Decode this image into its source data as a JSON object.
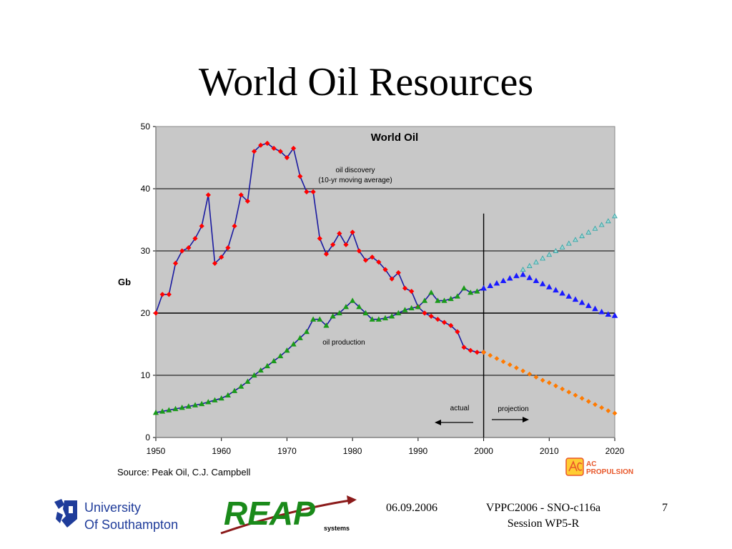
{
  "slide": {
    "title": "World Oil Resources",
    "footer_date": "06.09.2006",
    "footer_session_line1": "VPPC2006 - SNO-c116a",
    "footer_session_line2": "Session WP5-R",
    "page_number": "7"
  },
  "logos": {
    "university_line1": "University",
    "university_line2": "Of Southampton",
    "reap_word": "REAP",
    "reap_sub": "systems",
    "ac_line1": "AC",
    "ac_line2": "PROPULSION"
  },
  "colors": {
    "discovery_marker": "#ff0000",
    "discovery_line": "#1a1aa0",
    "production_marker": "#1a9a1a",
    "production_projection": "#1a1aff",
    "discovery_projection": "#ff7a00",
    "alt_projection": "#2aa0a0",
    "plot_bg": "#c8c8c8",
    "univ_blue": "#1f3c9a",
    "reap_green": "#1a8a1a",
    "reap_arrow": "#8b1a1a"
  },
  "chart_data": {
    "type": "line",
    "title": "World Oil",
    "ylabel": "Gb",
    "xlabel": "",
    "xlim": [
      1950,
      2020
    ],
    "ylim": [
      0,
      50
    ],
    "x_ticks": [
      1950,
      1960,
      1970,
      1980,
      1990,
      2000,
      2010,
      2020
    ],
    "y_ticks": [
      0,
      10,
      20,
      30,
      40,
      50
    ],
    "grid": "horizontal",
    "annotations": {
      "discovery": "oil discovery",
      "discovery_sub": "(10-yr moving average)",
      "production": "oil production",
      "actual": "actual",
      "projection": "projection"
    },
    "source": "Source: Peak Oil, C.J. Campbell",
    "divider_year": 2000,
    "series": [
      {
        "key": "discovery",
        "x": [
          1950,
          1951,
          1952,
          1953,
          1954,
          1955,
          1956,
          1957,
          1958,
          1959,
          1960,
          1961,
          1962,
          1963,
          1964,
          1965,
          1966,
          1967,
          1968,
          1969,
          1970,
          1971,
          1972,
          1973,
          1974,
          1975,
          1976,
          1977,
          1978,
          1979,
          1980,
          1981,
          1982,
          1983,
          1984,
          1985,
          1986,
          1987,
          1988,
          1989,
          1990,
          1991,
          1992,
          1993,
          1994,
          1995,
          1996,
          1997,
          1998,
          1999,
          2000
        ],
        "y": [
          20,
          23,
          23,
          28,
          30,
          30.5,
          32,
          34,
          39,
          28,
          29,
          30.5,
          34,
          39,
          38,
          46,
          47,
          47.3,
          46.5,
          46,
          45,
          46.5,
          42,
          39.5,
          39.5,
          32,
          29.5,
          31,
          32.8,
          31,
          33,
          30,
          28.5,
          29,
          28.2,
          27,
          25.5,
          26.5,
          24,
          23.5,
          21,
          20,
          19.5,
          19,
          18.5,
          18,
          17,
          14.5,
          14,
          13.7,
          13.7
        ]
      },
      {
        "key": "discovery_projection",
        "x": [
          2000,
          2001,
          2002,
          2003,
          2004,
          2005,
          2006,
          2007,
          2008,
          2009,
          2010,
          2011,
          2012,
          2013,
          2014,
          2015,
          2016,
          2017,
          2018,
          2019,
          2020
        ],
        "y": [
          13.7,
          13.2,
          12.7,
          12.2,
          11.7,
          11.2,
          10.7,
          10.2,
          9.7,
          9.2,
          8.8,
          8.3,
          7.8,
          7.3,
          6.8,
          6.3,
          5.8,
          5.3,
          4.8,
          4.3,
          3.9
        ]
      },
      {
        "key": "production",
        "x": [
          1950,
          1951,
          1952,
          1953,
          1954,
          1955,
          1956,
          1957,
          1958,
          1959,
          1960,
          1961,
          1962,
          1963,
          1964,
          1965,
          1966,
          1967,
          1968,
          1969,
          1970,
          1971,
          1972,
          1973,
          1974,
          1975,
          1976,
          1977,
          1978,
          1979,
          1980,
          1981,
          1982,
          1983,
          1984,
          1985,
          1986,
          1987,
          1988,
          1989,
          1990,
          1991,
          1992,
          1993,
          1994,
          1995,
          1996,
          1997,
          1998,
          1999,
          2000
        ],
        "y": [
          4,
          4.2,
          4.4,
          4.6,
          4.8,
          5,
          5.2,
          5.4,
          5.7,
          6,
          6.3,
          6.8,
          7.5,
          8.2,
          9,
          10,
          10.8,
          11.5,
          12.3,
          13.1,
          14,
          15,
          16,
          17,
          19,
          19,
          18,
          19.5,
          20,
          21,
          22,
          21,
          20,
          19,
          19,
          19.2,
          19.5,
          20,
          20.5,
          20.8,
          21,
          22,
          23.3,
          22,
          22,
          22.3,
          22.7,
          24,
          23.3,
          23.5,
          24
        ]
      },
      {
        "key": "production_projection",
        "x": [
          2000,
          2001,
          2002,
          2003,
          2004,
          2005,
          2006,
          2007,
          2008,
          2009,
          2010,
          2011,
          2012,
          2013,
          2014,
          2015,
          2016,
          2017,
          2018,
          2019,
          2020
        ],
        "y": [
          24,
          24.4,
          24.8,
          25.2,
          25.6,
          26,
          26.2,
          25.7,
          25.2,
          24.7,
          24.2,
          23.7,
          23.2,
          22.7,
          22.2,
          21.7,
          21.2,
          20.7,
          20.2,
          19.8,
          19.6
        ]
      },
      {
        "key": "production_alt_projection",
        "x": [
          2006,
          2007,
          2008,
          2009,
          2010,
          2011,
          2012,
          2013,
          2014,
          2015,
          2016,
          2017,
          2018,
          2019,
          2020
        ],
        "y": [
          27,
          27.6,
          28.2,
          28.8,
          29.4,
          30,
          30.6,
          31.2,
          31.8,
          32.4,
          33,
          33.6,
          34.2,
          34.8,
          35.6
        ]
      }
    ]
  }
}
